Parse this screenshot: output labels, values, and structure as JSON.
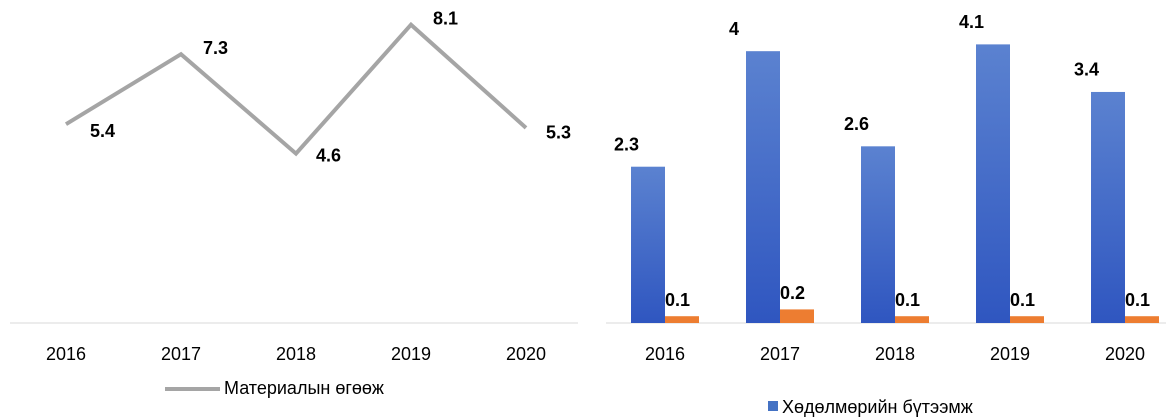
{
  "chart_data": [
    {
      "type": "line",
      "categories": [
        "2016",
        "2017",
        "2018",
        "2019",
        "2020"
      ],
      "series": [
        {
          "name": "Материалын өгөөж",
          "color": "#a5a5a5",
          "values": [
            5.4,
            7.3,
            4.6,
            8.1,
            5.3
          ]
        }
      ],
      "ylim": [
        0,
        8.5
      ],
      "legend": "bottom"
    },
    {
      "type": "bar",
      "categories": [
        "2016",
        "2017",
        "2018",
        "2019",
        "2020"
      ],
      "series": [
        {
          "name": "Хөдөлмөрийн бүтээмж",
          "color": "#4472c4",
          "values": [
            2.3,
            4,
            2.6,
            4.1,
            3.4
          ]
        },
        {
          "color": "#ed7d31",
          "values": [
            0.1,
            0.2,
            0.1,
            0.1,
            0.1
          ]
        }
      ],
      "ylim": [
        0,
        4.4
      ],
      "legend": "bottom"
    }
  ]
}
